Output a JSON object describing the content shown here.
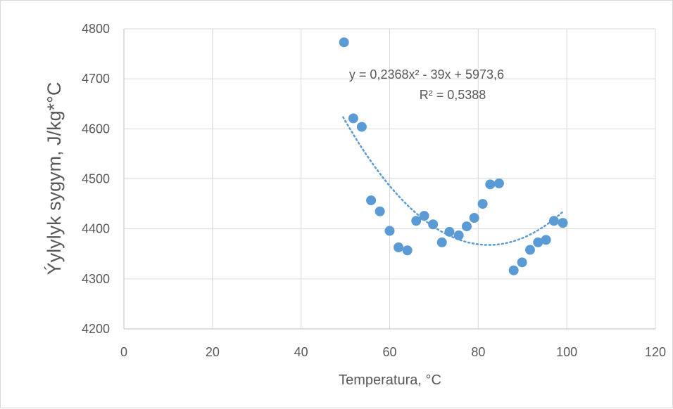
{
  "chart_data": {
    "type": "scatter",
    "title": "",
    "xlabel": "Temperatura, °C",
    "ylabel": "Ýylylyk sygym, J/kg*°C",
    "xlim": [
      0,
      120
    ],
    "ylim": [
      4200,
      4800
    ],
    "x_ticks": [
      0,
      20,
      40,
      60,
      80,
      100,
      120
    ],
    "y_ticks": [
      4200,
      4300,
      4400,
      4500,
      4600,
      4700,
      4800
    ],
    "grid": true,
    "legend": "none",
    "series": [
      {
        "x": [
          49.7,
          51.8,
          53.7,
          55.8,
          57.8,
          60.0,
          62.0,
          64.0,
          66.0,
          67.8,
          69.8,
          71.8,
          73.5,
          75.6,
          77.4,
          79.1,
          81.0,
          82.7,
          84.7,
          88.0,
          89.9,
          91.7,
          93.5,
          95.3,
          97.1,
          99.1
        ],
        "y": [
          4773,
          4621,
          4604,
          4457,
          4435,
          4396,
          4363,
          4357,
          4416,
          4426,
          4409,
          4373,
          4394,
          4387,
          4405,
          4422,
          4450,
          4489,
          4491,
          4317,
          4333,
          4358,
          4373,
          4378,
          4416,
          4412
        ],
        "color": "#5b9bd5"
      }
    ],
    "trendline": {
      "kind": "polynomial-2",
      "coefficients": [
        0.2368,
        -39,
        5973.6
      ],
      "x_range": [
        49.5,
        99.0
      ],
      "color": "#5b9bd5",
      "style": "dotted"
    },
    "annotations": [
      "y = 0,2368x² - 39x + 5973,6",
      "R² = 0,5388"
    ]
  }
}
